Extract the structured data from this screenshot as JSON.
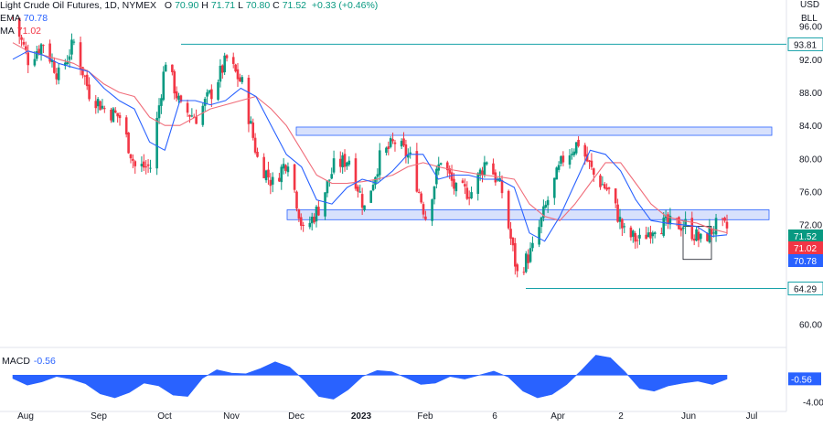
{
  "header": {
    "symbol": "Light Crude Oil Futures, 1D, NYMEX",
    "open_label": "O",
    "open": "70.90",
    "high_label": "H",
    "high": "71.71",
    "low_label": "L",
    "low": "70.80",
    "close_label": "C",
    "close": "71.52",
    "change": "+0.33 (+0.46%)",
    "ema_label": "EMA",
    "ema_value": "70.78",
    "ma_label": "MA",
    "ma_value": "71.02",
    "macd_label": "MACD",
    "macd_value": "-0.56",
    "currency": "USD",
    "unit": "BLL"
  },
  "colors": {
    "up": "#089981",
    "down": "#f23645",
    "ema": "#2962ff",
    "ma": "#f06d7a",
    "zone_fill": "#d1dcfb",
    "zone_stroke": "#2962ff",
    "level_line": "#18a2a9",
    "macd_fill": "#2962ff",
    "grid": "#f0f3fa"
  },
  "chart_data": [
    {
      "type": "candlestick",
      "title": "Light Crude Oil Futures, 1D, NYMEX",
      "ylim": [
        57.6,
        98.5
      ],
      "y_ticks": [
        "96.00",
        "92.00",
        "88.00",
        "84.00",
        "80.00",
        "76.00",
        "72.00",
        "68.00",
        "64.00",
        "60.00"
      ],
      "x_ticks": [
        "Aug",
        "Sep",
        "Oct",
        "Nov",
        "Dec",
        "2023",
        "Feb",
        "6",
        "Apr",
        "2",
        "Jun",
        "Jul"
      ],
      "price_badges": [
        {
          "value": "93.81",
          "kind": "level"
        },
        {
          "value": "71.52",
          "kind": "close"
        },
        {
          "value": "71.02",
          "kind": "ma"
        },
        {
          "value": "70.78",
          "kind": "ema"
        },
        {
          "value": "64.29",
          "kind": "level"
        }
      ],
      "horizontal_levels": [
        93.81,
        64.29
      ],
      "zones": [
        {
          "from": 82.8,
          "to": 83.8
        },
        {
          "from": 72.6,
          "to": 73.8
        }
      ],
      "range_box": {
        "from": 67.8,
        "to": 71.8
      },
      "close_path": [
        [
          "2022-07-29",
          97
        ],
        [
          "2022-08-05",
          92
        ],
        [
          "2022-08-12",
          94
        ],
        [
          "2022-08-19",
          90
        ],
        [
          "2022-08-26",
          94
        ],
        [
          "2022-09-02",
          88
        ],
        [
          "2022-09-09",
          86
        ],
        [
          "2022-09-16",
          85
        ],
        [
          "2022-09-23",
          79
        ],
        [
          "2022-09-30",
          79
        ],
        [
          "2022-10-07",
          92
        ],
        [
          "2022-10-14",
          86
        ],
        [
          "2022-10-21",
          85
        ],
        [
          "2022-10-28",
          88
        ],
        [
          "2022-11-04",
          92
        ],
        [
          "2022-11-11",
          89
        ],
        [
          "2022-11-18",
          80
        ],
        [
          "2022-11-25",
          77
        ],
        [
          "2022-12-02",
          80
        ],
        [
          "2022-12-09",
          71
        ],
        [
          "2022-12-16",
          74
        ],
        [
          "2022-12-23",
          79
        ],
        [
          "2022-12-30",
          80
        ],
        [
          "2023-01-06",
          74
        ],
        [
          "2023-01-13",
          80
        ],
        [
          "2023-01-20",
          82
        ],
        [
          "2023-01-27",
          80
        ],
        [
          "2023-02-03",
          73
        ],
        [
          "2023-02-10",
          80
        ],
        [
          "2023-02-17",
          76
        ],
        [
          "2023-02-24",
          76
        ],
        [
          "2023-03-03",
          80
        ],
        [
          "2023-03-10",
          76
        ],
        [
          "2023-03-17",
          66
        ],
        [
          "2023-03-24",
          69
        ],
        [
          "2023-03-31",
          75
        ],
        [
          "2023-04-07",
          80
        ],
        [
          "2023-04-14",
          82
        ],
        [
          "2023-04-21",
          78
        ],
        [
          "2023-04-28",
          76
        ],
        [
          "2023-05-05",
          71
        ],
        [
          "2023-05-12",
          70
        ],
        [
          "2023-05-19",
          72
        ],
        [
          "2023-05-26",
          72
        ],
        [
          "2023-06-02",
          72
        ],
        [
          "2023-06-09",
          70
        ],
        [
          "2023-06-16",
          71.8
        ],
        [
          "2023-06-21",
          71.52
        ]
      ],
      "ema_values": [
        92,
        93,
        92.5,
        91.5,
        91,
        90.5,
        88.5,
        87,
        86,
        82,
        81,
        87,
        87,
        86.5,
        87,
        88.5,
        87.5,
        84,
        80.5,
        79,
        75,
        74.5,
        76.5,
        77.5,
        77,
        78.5,
        80.5,
        80.5,
        77.5,
        78,
        78,
        77.5,
        77.5,
        76.5,
        71,
        70,
        73,
        77,
        81,
        80.5,
        78.5,
        75,
        72.5,
        72.2,
        72,
        71.8,
        70.6,
        70.78
      ],
      "ma_values": [
        94,
        93,
        92.5,
        92,
        91.5,
        90.5,
        89,
        88,
        87.5,
        85,
        84,
        84,
        85,
        86,
        86.5,
        87,
        87.5,
        86,
        84,
        81,
        78,
        77,
        77,
        77.2,
        77.5,
        78,
        79,
        79.5,
        79,
        78.6,
        78.3,
        78,
        77.8,
        77.5,
        74.5,
        73,
        72.5,
        74.5,
        77,
        79.5,
        79.5,
        77,
        74.5,
        73,
        72.5,
        72.2,
        71.5,
        71.02
      ]
    },
    {
      "type": "area",
      "title": "MACD",
      "ylim": [
        -4.9,
        3.6
      ],
      "y_ticks": [
        "0.00",
        "-4.00"
      ],
      "last_value": "-0.56",
      "values": [
        -0.5,
        -1.5,
        -1.0,
        -0.2,
        -0.6,
        -1.3,
        -2.8,
        -3.4,
        -2.6,
        -1.2,
        -1.6,
        -3.0,
        -3.2,
        -0.5,
        0.8,
        0.3,
        0.2,
        1.0,
        2.0,
        1.2,
        -0.8,
        -3.2,
        -3.6,
        -2.2,
        -0.2,
        0.7,
        0.5,
        -0.4,
        -1.4,
        -1.2,
        -0.2,
        -0.6,
        0.0,
        0.6,
        -0.3,
        -2.4,
        -3.4,
        -2.9,
        -1.4,
        0.7,
        3.0,
        2.6,
        0.5,
        -2.0,
        -2.4,
        -1.6,
        -1.2,
        -0.9,
        -1.4,
        -0.6
      ]
    }
  ]
}
